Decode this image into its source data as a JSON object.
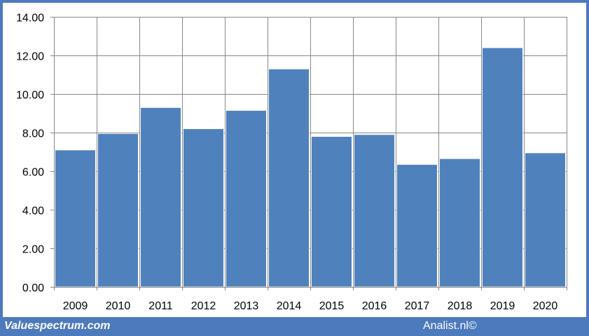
{
  "colors": {
    "frame": "#4d79bd",
    "bar": "#4f81bd",
    "grid": "#878787",
    "text": "#000000",
    "footer_text": "#ffffff"
  },
  "footer": {
    "brand": "Valuespectrum.com",
    "credit": "Analist.nl©"
  },
  "chart_data": {
    "type": "bar",
    "categories": [
      "2009",
      "2010",
      "2011",
      "2012",
      "2013",
      "2014",
      "2015",
      "2016",
      "2017",
      "2018",
      "2019",
      "2020"
    ],
    "values": [
      7.1,
      7.95,
      9.3,
      8.2,
      9.15,
      11.3,
      7.8,
      7.9,
      6.35,
      6.65,
      12.4,
      6.95
    ],
    "ylim": [
      0,
      14
    ],
    "yticks": [
      0,
      2,
      4,
      6,
      8,
      10,
      12,
      14
    ],
    "ytick_labels": [
      "0.00",
      "2.00",
      "4.00",
      "6.00",
      "8.00",
      "10.00",
      "12.00",
      "14.00"
    ],
    "grid": true,
    "title": "",
    "xlabel": "",
    "ylabel": ""
  }
}
